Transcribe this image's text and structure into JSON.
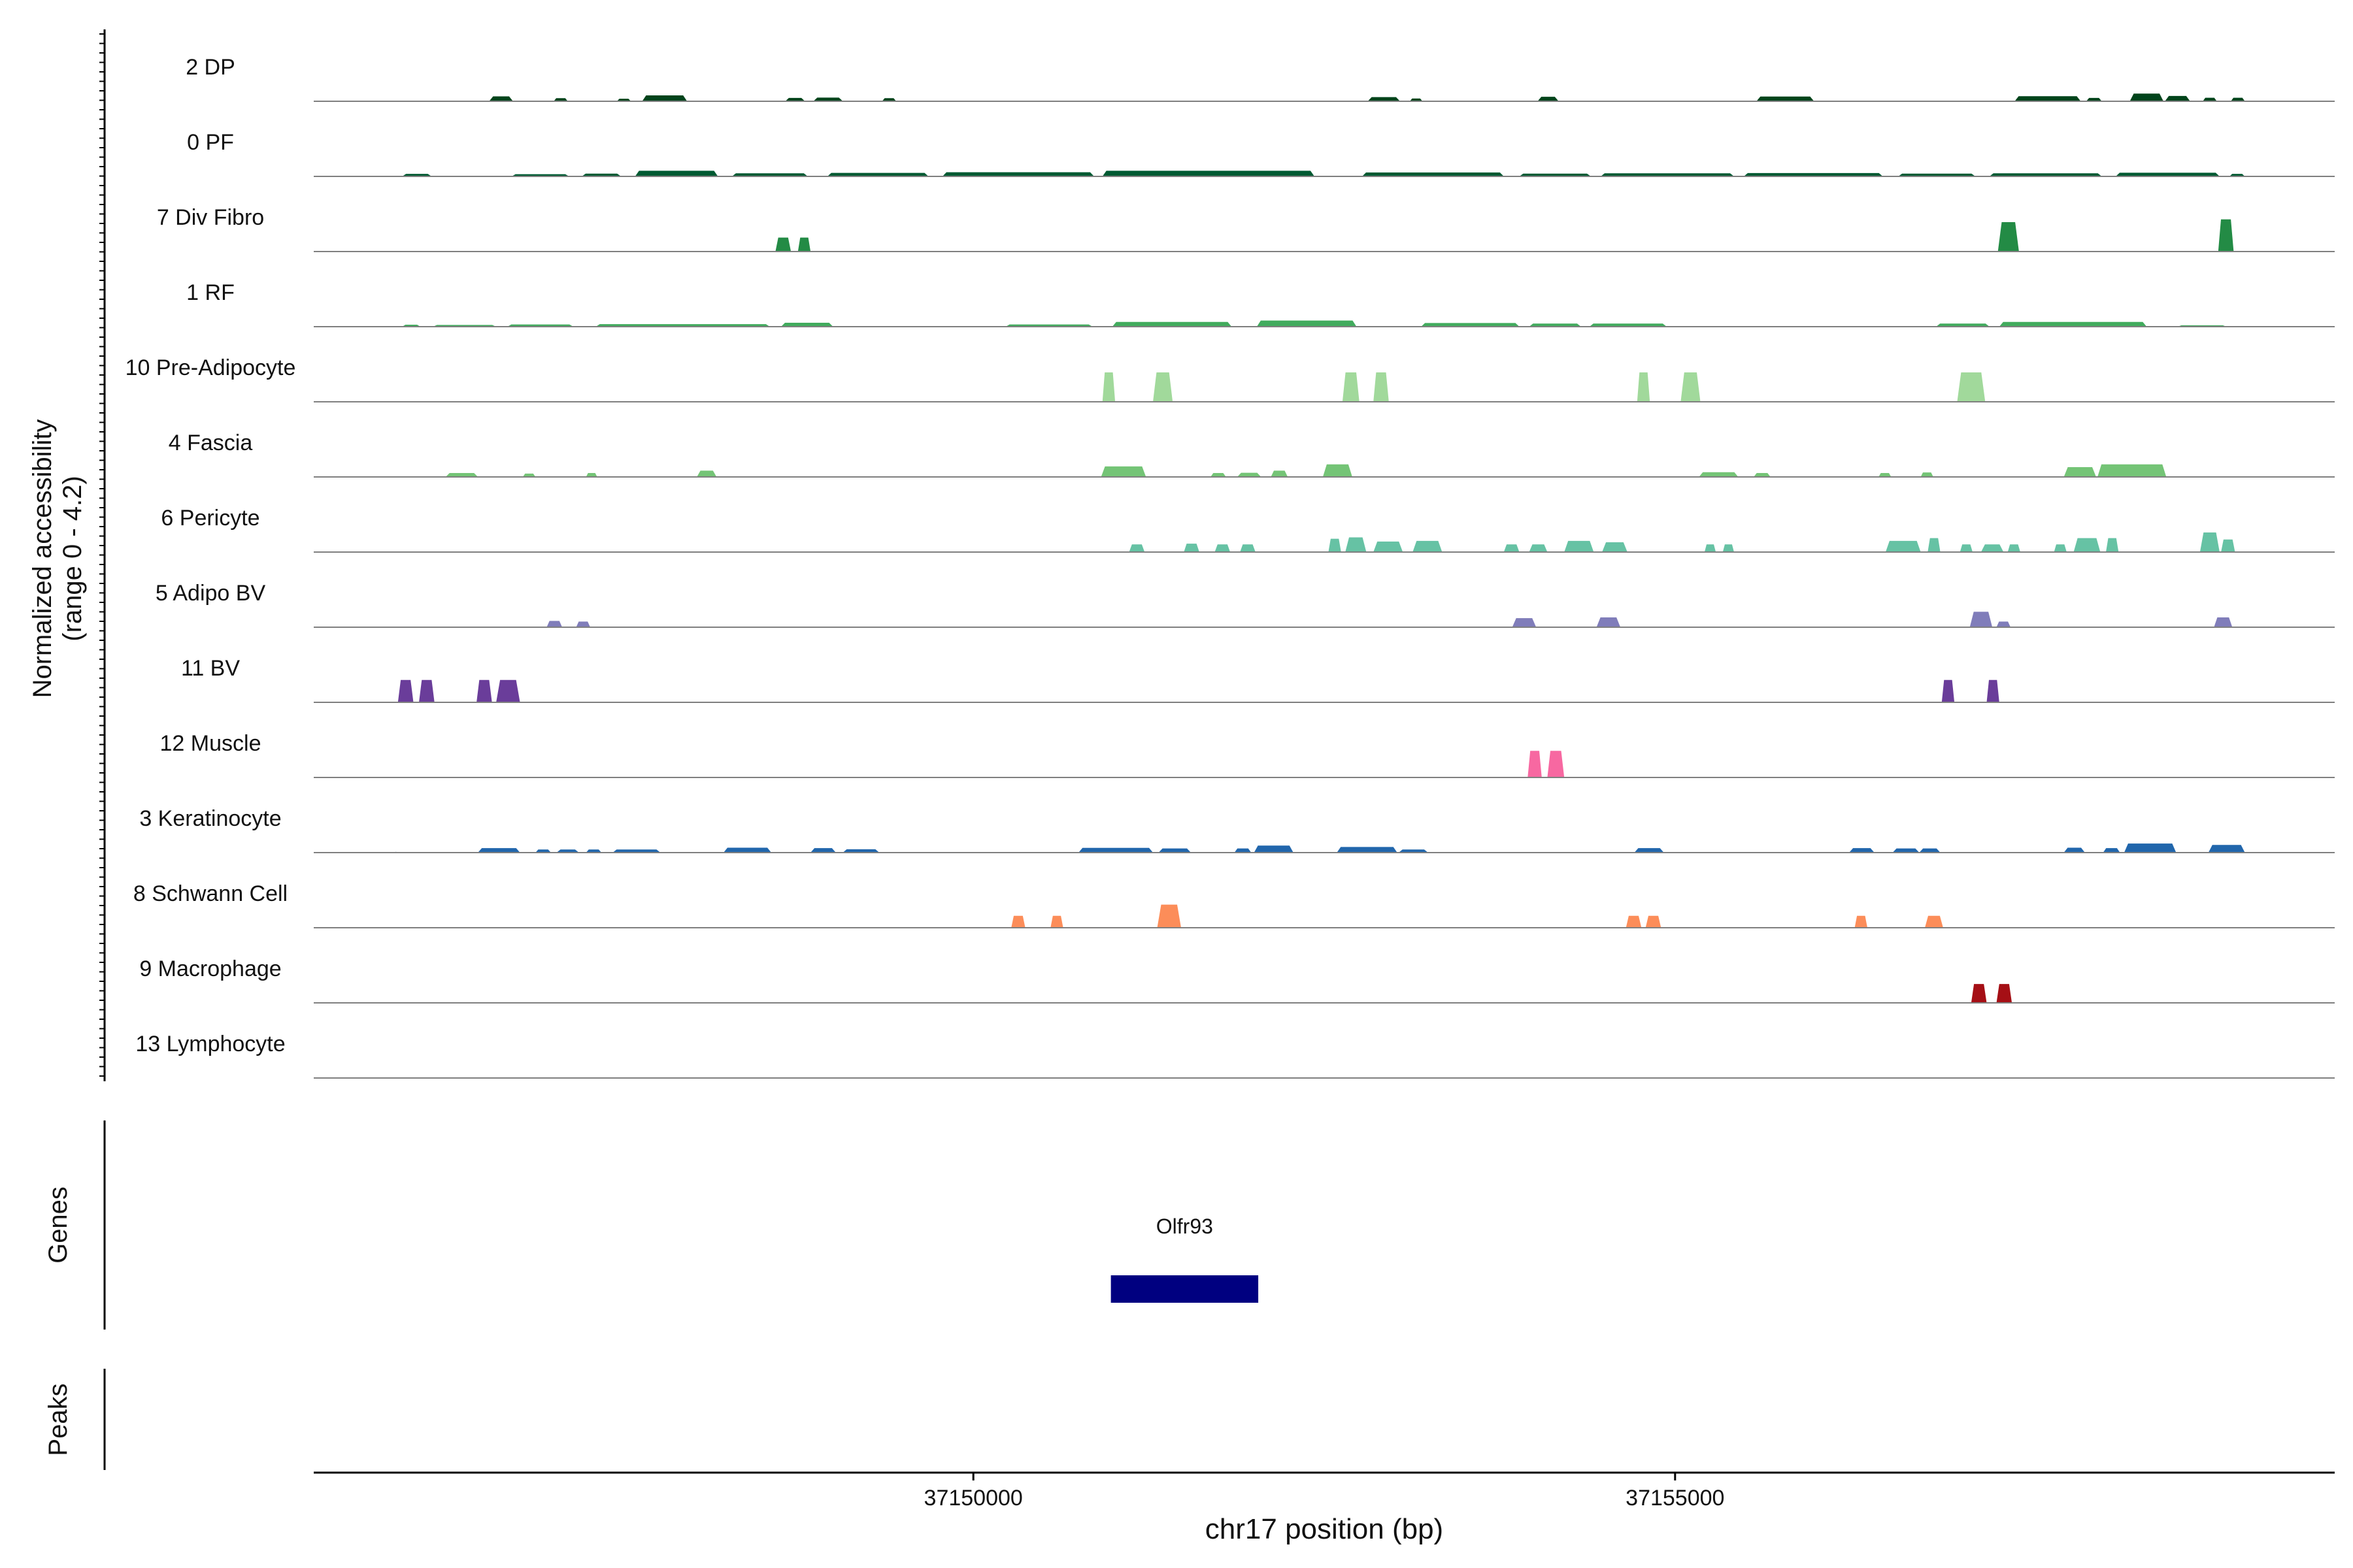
{
  "chart_data": {
    "type": "area",
    "subtype": "genome-coverage-track",
    "title": "",
    "xlabel": "chr17 position (bp)",
    "ylabel_line1": "Normalized accessibility",
    "ylabel_line2": "(range 0 - 4.2)",
    "ylim": [
      0,
      4.2
    ],
    "xlim": [
      37145300,
      37159700
    ],
    "xticks": [
      37150000,
      37155000
    ],
    "xtick_labels": [
      "37150000",
      "37155000"
    ],
    "grid": false,
    "legend": "none",
    "genes_label": "Genes",
    "peaks_label": "Peaks",
    "genes": [
      {
        "name": "Olfr93",
        "start": 37150980,
        "end": 37152030,
        "color": "#000080"
      }
    ],
    "peaks": [],
    "tracks": [
      {
        "name": "2 DP",
        "color": "#00441b",
        "blocks": [
          [
            37146550,
            37146720,
            0.35
          ],
          [
            37147010,
            37147110,
            0.22
          ],
          [
            37147460,
            37147560,
            0.18
          ],
          [
            37147640,
            37147960,
            0.42
          ],
          [
            37148660,
            37148800,
            0.24
          ],
          [
            37148860,
            37149070,
            0.26
          ],
          [
            37149350,
            37149450,
            0.22
          ],
          [
            37152810,
            37153040,
            0.3
          ],
          [
            37153110,
            37153200,
            0.2
          ],
          [
            37154020,
            37154170,
            0.32
          ],
          [
            37155580,
            37155990,
            0.34
          ],
          [
            37157420,
            37157890,
            0.36
          ],
          [
            37157930,
            37158040,
            0.24
          ],
          [
            37158240,
            37158480,
            0.55
          ],
          [
            37158490,
            37158670,
            0.38
          ],
          [
            37158760,
            37158860,
            0.25
          ],
          [
            37158960,
            37159060,
            0.25
          ]
        ]
      },
      {
        "name": "0 PF",
        "color": "#005a32",
        "blocks": [
          [
            37145930,
            37146140,
            0.18
          ],
          [
            37146710,
            37147120,
            0.16
          ],
          [
            37147210,
            37147490,
            0.2
          ],
          [
            37147590,
            37148180,
            0.4
          ],
          [
            37148280,
            37148820,
            0.22
          ],
          [
            37148960,
            37149680,
            0.25
          ],
          [
            37149780,
            37150860,
            0.3
          ],
          [
            37150920,
            37152430,
            0.4
          ],
          [
            37152770,
            37153780,
            0.28
          ],
          [
            37153890,
            37154400,
            0.2
          ],
          [
            37154470,
            37155420,
            0.22
          ],
          [
            37155490,
            37156480,
            0.24
          ],
          [
            37156590,
            37157140,
            0.2
          ],
          [
            37157240,
            37158040,
            0.22
          ],
          [
            37158140,
            37158880,
            0.26
          ],
          [
            37158950,
            37159060,
            0.18
          ]
        ]
      },
      {
        "name": "7 Div Fibro",
        "color": "#238b45",
        "blocks": [
          [
            37148590,
            37148700,
            1.0
          ],
          [
            37148750,
            37148840,
            1.0
          ],
          [
            37157300,
            37157450,
            2.1
          ],
          [
            37158870,
            37158980,
            2.3
          ]
        ]
      },
      {
        "name": "1 RF",
        "color": "#41ab5d",
        "blocks": [
          [
            37145930,
            37146060,
            0.14
          ],
          [
            37146150,
            37146600,
            0.12
          ],
          [
            37146680,
            37147150,
            0.16
          ],
          [
            37147310,
            37148550,
            0.18
          ],
          [
            37148630,
            37149000,
            0.28
          ],
          [
            37150230,
            37150850,
            0.16
          ],
          [
            37150990,
            37151840,
            0.34
          ],
          [
            37152020,
            37152730,
            0.44
          ],
          [
            37153190,
            37153890,
            0.26
          ],
          [
            37153960,
            37154330,
            0.22
          ],
          [
            37154390,
            37154940,
            0.22
          ],
          [
            37156860,
            37157240,
            0.22
          ],
          [
            37157310,
            37158360,
            0.34
          ],
          [
            37158580,
            37158930,
            0.1
          ]
        ]
      },
      {
        "name": "10 Pre-Adipocyte",
        "color": "#a1d99b",
        "blocks": [
          [
            37150920,
            37151010,
            2.1
          ],
          [
            37151280,
            37151420,
            2.1
          ],
          [
            37152630,
            37152750,
            2.1
          ],
          [
            37152850,
            37152960,
            2.1
          ],
          [
            37154730,
            37154820,
            2.1
          ],
          [
            37155040,
            37155180,
            2.1
          ],
          [
            37157010,
            37157210,
            2.1
          ]
        ]
      },
      {
        "name": "4 Fascia",
        "color": "#74c476",
        "blocks": [
          [
            37146240,
            37146470,
            0.28
          ],
          [
            37146790,
            37146880,
            0.24
          ],
          [
            37147240,
            37147320,
            0.28
          ],
          [
            37148030,
            37148170,
            0.45
          ],
          [
            37150910,
            37151230,
            0.75
          ],
          [
            37151690,
            37151800,
            0.28
          ],
          [
            37151880,
            37152050,
            0.3
          ],
          [
            37152120,
            37152240,
            0.45
          ],
          [
            37152490,
            37152700,
            0.9
          ],
          [
            37155170,
            37155450,
            0.34
          ],
          [
            37155560,
            37155680,
            0.28
          ],
          [
            37156450,
            37156540,
            0.28
          ],
          [
            37156750,
            37156840,
            0.32
          ],
          [
            37157770,
            37158000,
            0.7
          ],
          [
            37158010,
            37158500,
            0.9
          ]
        ]
      },
      {
        "name": "6 Pericyte",
        "color": "#66c2a4",
        "blocks": [
          [
            37151110,
            37151220,
            0.55
          ],
          [
            37151500,
            37151610,
            0.6
          ],
          [
            37151720,
            37151830,
            0.55
          ],
          [
            37151900,
            37152010,
            0.55
          ],
          [
            37152530,
            37152620,
            0.95
          ],
          [
            37152650,
            37152800,
            1.05
          ],
          [
            37152850,
            37153060,
            0.75
          ],
          [
            37153130,
            37153340,
            0.8
          ],
          [
            37153780,
            37153890,
            0.55
          ],
          [
            37153960,
            37154090,
            0.55
          ],
          [
            37154210,
            37154420,
            0.8
          ],
          [
            37154480,
            37154660,
            0.7
          ],
          [
            37155210,
            37155290,
            0.55
          ],
          [
            37155340,
            37155420,
            0.55
          ],
          [
            37156500,
            37156750,
            0.8
          ],
          [
            37156800,
            37156890,
            1.0
          ],
          [
            37157030,
            37157120,
            0.55
          ],
          [
            37157180,
            37157340,
            0.55
          ],
          [
            37157370,
            37157460,
            0.55
          ],
          [
            37157700,
            37157790,
            0.55
          ],
          [
            37157840,
            37158030,
            1.0
          ],
          [
            37158070,
            37158160,
            1.0
          ],
          [
            37158740,
            37158880,
            1.4
          ],
          [
            37158890,
            37158990,
            0.9
          ]
        ]
      },
      {
        "name": "5 Adipo BV",
        "color": "#807dba",
        "blocks": [
          [
            37146960,
            37147070,
            0.45
          ],
          [
            37147170,
            37147270,
            0.4
          ],
          [
            37153840,
            37154010,
            0.65
          ],
          [
            37154440,
            37154610,
            0.7
          ],
          [
            37157100,
            37157260,
            1.1
          ],
          [
            37157290,
            37157390,
            0.4
          ],
          [
            37158840,
            37158970,
            0.7
          ]
        ]
      },
      {
        "name": "11 BV",
        "color": "#6a3d9a",
        "blocks": [
          [
            37145900,
            37146010,
            1.6
          ],
          [
            37146050,
            37146160,
            1.6
          ],
          [
            37146460,
            37146570,
            1.6
          ],
          [
            37146600,
            37146770,
            1.6
          ],
          [
            37156900,
            37156990,
            1.6
          ],
          [
            37157220,
            37157310,
            1.6
          ]
        ]
      },
      {
        "name": "12 Muscle",
        "color": "#f768a1",
        "blocks": [
          [
            37153950,
            37154050,
            1.9
          ],
          [
            37154090,
            37154210,
            1.9
          ]
        ]
      },
      {
        "name": "3 Keratinocyte",
        "color": "#2166ac",
        "blocks": [
          [
            37145880,
            37145890,
            0.05
          ],
          [
            37146470,
            37146770,
            0.32
          ],
          [
            37146880,
            37146990,
            0.22
          ],
          [
            37147030,
            37147190,
            0.22
          ],
          [
            37147240,
            37147350,
            0.22
          ],
          [
            37147430,
            37147770,
            0.22
          ],
          [
            37148220,
            37148560,
            0.35
          ],
          [
            37148840,
            37149020,
            0.32
          ],
          [
            37149070,
            37149330,
            0.24
          ],
          [
            37150750,
            37151280,
            0.34
          ],
          [
            37151320,
            37151550,
            0.3
          ],
          [
            37151860,
            37151980,
            0.3
          ],
          [
            37152000,
            37152280,
            0.5
          ],
          [
            37152590,
            37153020,
            0.4
          ],
          [
            37153030,
            37153240,
            0.22
          ],
          [
            37154710,
            37154920,
            0.32
          ],
          [
            37156240,
            37156420,
            0.32
          ],
          [
            37156550,
            37156740,
            0.3
          ],
          [
            37156740,
            37156890,
            0.3
          ],
          [
            37157770,
            37157920,
            0.35
          ],
          [
            37158050,
            37158170,
            0.32
          ],
          [
            37158200,
            37158570,
            0.65
          ],
          [
            37158800,
            37159060,
            0.55
          ]
        ]
      },
      {
        "name": "8 Schwann Cell",
        "color": "#fc8d59",
        "blocks": [
          [
            37150270,
            37150370,
            0.85
          ],
          [
            37150550,
            37150640,
            0.85
          ],
          [
            37151310,
            37151480,
            1.65
          ],
          [
            37154650,
            37154760,
            0.85
          ],
          [
            37154790,
            37154900,
            0.85
          ],
          [
            37156280,
            37156370,
            0.85
          ],
          [
            37156780,
            37156910,
            0.85
          ]
        ]
      },
      {
        "name": "9 Macrophage",
        "color": "#a50f15",
        "blocks": [
          [
            37157110,
            37157220,
            1.35
          ],
          [
            37157290,
            37157400,
            1.35
          ]
        ]
      },
      {
        "name": "13 Lymphocyte",
        "color": "#a50f15",
        "blocks": []
      }
    ]
  }
}
